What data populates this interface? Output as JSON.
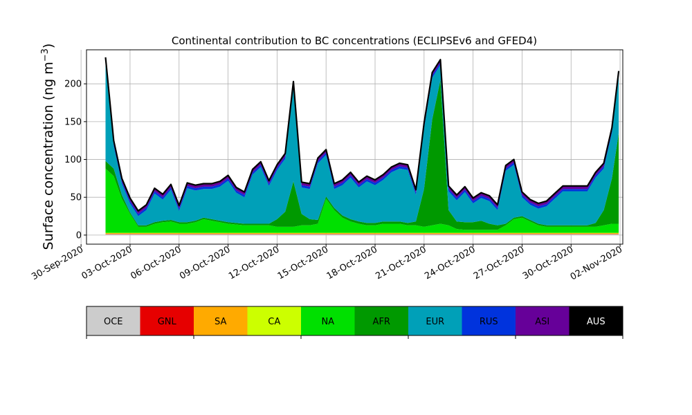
{
  "chart_data": {
    "type": "area",
    "title": "Continental contribution to BC concentrations (ECLIPSEv6 and GFED4)",
    "ylabel_main": "Surface concentration (ng m",
    "ylabel_sup": "−3",
    "ylabel_close": ")",
    "xlabel": "",
    "ylim": [
      -12,
      245
    ],
    "yticks": [
      0,
      50,
      100,
      150,
      200
    ],
    "xlim": [
      "2020-09-30T08:00",
      "2020-11-02T04:00"
    ],
    "xticks": [
      "30-Sep-2020",
      "03-Oct-2020",
      "06-Oct-2020",
      "09-Oct-2020",
      "12-Oct-2020",
      "15-Oct-2020",
      "18-Oct-2020",
      "21-Oct-2020",
      "24-Oct-2020",
      "27-Oct-2020",
      "30-Oct-2020",
      "02-Nov-2020"
    ],
    "grid": true,
    "x": [
      "2020-10-01T12:00",
      "2020-10-02T00:00",
      "2020-10-02T12:00",
      "2020-10-03T00:00",
      "2020-10-03T12:00",
      "2020-10-04T00:00",
      "2020-10-04T12:00",
      "2020-10-05T00:00",
      "2020-10-05T12:00",
      "2020-10-06T00:00",
      "2020-10-06T12:00",
      "2020-10-07T00:00",
      "2020-10-07T12:00",
      "2020-10-08T00:00",
      "2020-10-08T12:00",
      "2020-10-09T00:00",
      "2020-10-09T12:00",
      "2020-10-10T00:00",
      "2020-10-10T12:00",
      "2020-10-11T00:00",
      "2020-10-11T12:00",
      "2020-10-12T00:00",
      "2020-10-12T12:00",
      "2020-10-13T00:00",
      "2020-10-13T12:00",
      "2020-10-14T00:00",
      "2020-10-14T12:00",
      "2020-10-15T00:00",
      "2020-10-15T12:00",
      "2020-10-16T00:00",
      "2020-10-16T12:00",
      "2020-10-17T00:00",
      "2020-10-17T12:00",
      "2020-10-18T00:00",
      "2020-10-18T12:00",
      "2020-10-19T00:00",
      "2020-10-19T12:00",
      "2020-10-20T00:00",
      "2020-10-20T12:00",
      "2020-10-21T00:00",
      "2020-10-21T12:00",
      "2020-10-22T00:00",
      "2020-10-22T12:00",
      "2020-10-23T00:00",
      "2020-10-23T12:00",
      "2020-10-24T00:00",
      "2020-10-24T12:00",
      "2020-10-25T00:00",
      "2020-10-25T12:00",
      "2020-10-26T00:00",
      "2020-10-26T12:00",
      "2020-10-27T00:00",
      "2020-10-27T12:00",
      "2020-10-28T00:00",
      "2020-10-28T12:00",
      "2020-10-29T00:00",
      "2020-10-29T12:00",
      "2020-10-30T00:00",
      "2020-10-30T12:00",
      "2020-10-31T00:00",
      "2020-10-31T12:00",
      "2020-11-01T00:00",
      "2020-11-01T12:00",
      "2020-11-01T22:00"
    ],
    "series": [
      {
        "name": "OCE",
        "color": "#cccccc",
        "values": [
          1,
          1,
          1,
          1,
          1,
          1,
          1,
          1,
          1,
          1,
          1,
          1,
          1,
          1,
          1,
          1,
          1,
          1,
          1,
          1,
          1,
          1,
          1,
          1,
          1,
          1,
          1,
          1,
          1,
          1,
          1,
          1,
          1,
          1,
          1,
          1,
          1,
          1,
          1,
          1,
          1,
          1,
          1,
          1,
          1,
          1,
          1,
          1,
          1,
          1,
          1,
          1,
          1,
          1,
          1,
          1,
          1,
          1,
          1,
          1,
          1,
          1,
          1,
          1
        ]
      },
      {
        "name": "GNL",
        "color": "#e60000",
        "values": [
          0.5,
          0.5,
          0.5,
          0.5,
          0.5,
          0.5,
          0.5,
          0.5,
          0.5,
          0.5,
          0.5,
          0.5,
          0.5,
          0.5,
          0.5,
          0.5,
          0.5,
          0.5,
          0.5,
          0.5,
          0.5,
          0.5,
          0.5,
          0.5,
          0.5,
          0.5,
          0.5,
          0.5,
          0.5,
          0.5,
          0.5,
          0.5,
          0.5,
          0.5,
          0.5,
          0.5,
          0.5,
          0.5,
          0.5,
          0.5,
          0.5,
          0.5,
          0.5,
          0.5,
          0.5,
          0.5,
          0.5,
          0.5,
          0.5,
          0.5,
          0.5,
          0.5,
          0.5,
          0.5,
          0.5,
          0.5,
          0.5,
          0.5,
          0.5,
          0.5,
          0.5,
          0.5,
          0.5,
          0.5
        ]
      },
      {
        "name": "SA",
        "color": "#ffaa00",
        "values": [
          1,
          1,
          1,
          1,
          1,
          1,
          1,
          1,
          1,
          1,
          1,
          1,
          1,
          1,
          1,
          1,
          1,
          1,
          1,
          1,
          1,
          1,
          1,
          1,
          1,
          1,
          1,
          1,
          1,
          1,
          1,
          1,
          1,
          1,
          1,
          1,
          1,
          1,
          1,
          1,
          1,
          1,
          1,
          1,
          1,
          1,
          1,
          1,
          1,
          1,
          1,
          1,
          1,
          1,
          1,
          1,
          1,
          1,
          1,
          1,
          1,
          1,
          1,
          1
        ]
      },
      {
        "name": "CA",
        "color": "#ccff00",
        "values": [
          0.5,
          0.5,
          0.5,
          0.5,
          0.5,
          0.5,
          0.5,
          0.5,
          0.5,
          0.5,
          0.5,
          0.5,
          0.5,
          0.5,
          0.5,
          0.5,
          0.5,
          0.5,
          0.5,
          0.5,
          0.5,
          0.5,
          0.5,
          0.5,
          0.5,
          0.5,
          0.5,
          0.5,
          0.5,
          0.5,
          0.5,
          0.5,
          0.5,
          0.5,
          0.5,
          0.5,
          0.5,
          0.5,
          0.5,
          0.5,
          0.5,
          0.5,
          0.5,
          0.5,
          0.5,
          0.5,
          0.5,
          0.5,
          0.5,
          0.5,
          0.5,
          0.5,
          0.5,
          0.5,
          0.5,
          0.5,
          0.5,
          0.5,
          0.5,
          0.5,
          0.5,
          0.5,
          0.5,
          0.5
        ]
      },
      {
        "name": "NA",
        "color": "#00e000",
        "values": [
          85,
          75,
          45,
          25,
          8,
          8,
          12,
          14,
          15,
          12,
          12,
          14,
          18,
          16,
          14,
          12,
          11,
          10,
          10,
          10,
          10,
          8,
          8,
          8,
          10,
          10,
          12,
          45,
          30,
          20,
          15,
          12,
          10,
          10,
          12,
          12,
          12,
          10,
          10,
          8,
          10,
          12,
          10,
          5,
          4,
          4,
          4,
          4,
          4,
          10,
          18,
          20,
          15,
          10,
          8,
          8,
          8,
          8,
          8,
          8,
          8,
          10,
          12,
          12
        ]
      },
      {
        "name": "AFR",
        "color": "#009900",
        "values": [
          10,
          10,
          5,
          2,
          2,
          2,
          2,
          2,
          2,
          2,
          2,
          2,
          2,
          2,
          2,
          2,
          2,
          2,
          2,
          2,
          2,
          10,
          20,
          60,
          15,
          8,
          5,
          3,
          3,
          3,
          3,
          3,
          3,
          3,
          3,
          3,
          3,
          3,
          5,
          50,
          140,
          190,
          20,
          10,
          10,
          10,
          12,
          8,
          6,
          2,
          2,
          2,
          2,
          2,
          2,
          2,
          2,
          2,
          2,
          2,
          5,
          20,
          60,
          120
        ]
      },
      {
        "name": "EUR",
        "color": "#00a0b8",
        "values": [
          130,
          30,
          15,
          12,
          12,
          20,
          38,
          28,
          40,
          15,
          45,
          40,
          38,
          40,
          45,
          55,
          40,
          35,
          65,
          75,
          50,
          65,
          70,
          125,
          35,
          40,
          75,
          55,
          25,
          40,
          55,
          45,
          55,
          50,
          55,
          65,
          70,
          70,
          35,
          80,
          55,
          20,
          25,
          28,
          40,
          25,
          30,
          30,
          20,
          70,
          70,
          25,
          20,
          20,
          25,
          35,
          45,
          45,
          45,
          45,
          60,
          55,
          60,
          75
        ]
      },
      {
        "name": "RUS",
        "color": "#0033dd",
        "values": [
          3,
          3,
          3,
          3,
          3,
          3,
          3,
          3,
          3,
          3,
          3,
          3,
          3,
          3,
          3,
          3,
          3,
          3,
          3,
          3,
          3,
          3,
          3,
          3,
          3,
          3,
          3,
          3,
          3,
          3,
          3,
          3,
          3,
          3,
          3,
          3,
          3,
          3,
          3,
          3,
          3,
          3,
          3,
          3,
          3,
          3,
          3,
          3,
          3,
          3,
          3,
          3,
          3,
          3,
          3,
          3,
          3,
          3,
          3,
          3,
          3,
          3,
          3,
          3
        ]
      },
      {
        "name": "ASI",
        "color": "#660099",
        "values": [
          3,
          3,
          3,
          3,
          3,
          3,
          3,
          3,
          3,
          3,
          3,
          3,
          3,
          3,
          3,
          3,
          3,
          3,
          3,
          3,
          3,
          3,
          3,
          3,
          3,
          3,
          3,
          3,
          3,
          3,
          3,
          3,
          3,
          3,
          3,
          3,
          3,
          3,
          3,
          3,
          3,
          3,
          3,
          3,
          3,
          3,
          3,
          3,
          3,
          3,
          3,
          3,
          3,
          3,
          3,
          3,
          3,
          3,
          3,
          3,
          3,
          3,
          3,
          3
        ]
      },
      {
        "name": "AUS",
        "color": "#000000",
        "values": [
          1,
          1,
          1,
          1,
          1,
          1,
          1,
          1,
          1,
          1,
          1,
          1,
          1,
          1,
          1,
          1,
          1,
          1,
          1,
          1,
          1,
          1,
          1,
          1,
          1,
          1,
          1,
          1,
          1,
          1,
          1,
          1,
          1,
          1,
          1,
          1,
          1,
          1,
          1,
          1,
          1,
          1,
          1,
          1,
          1,
          1,
          1,
          1,
          1,
          1,
          1,
          1,
          1,
          1,
          1,
          1,
          1,
          1,
          1,
          1,
          1,
          1,
          1,
          1
        ]
      }
    ],
    "total_line_color": "#000000"
  }
}
